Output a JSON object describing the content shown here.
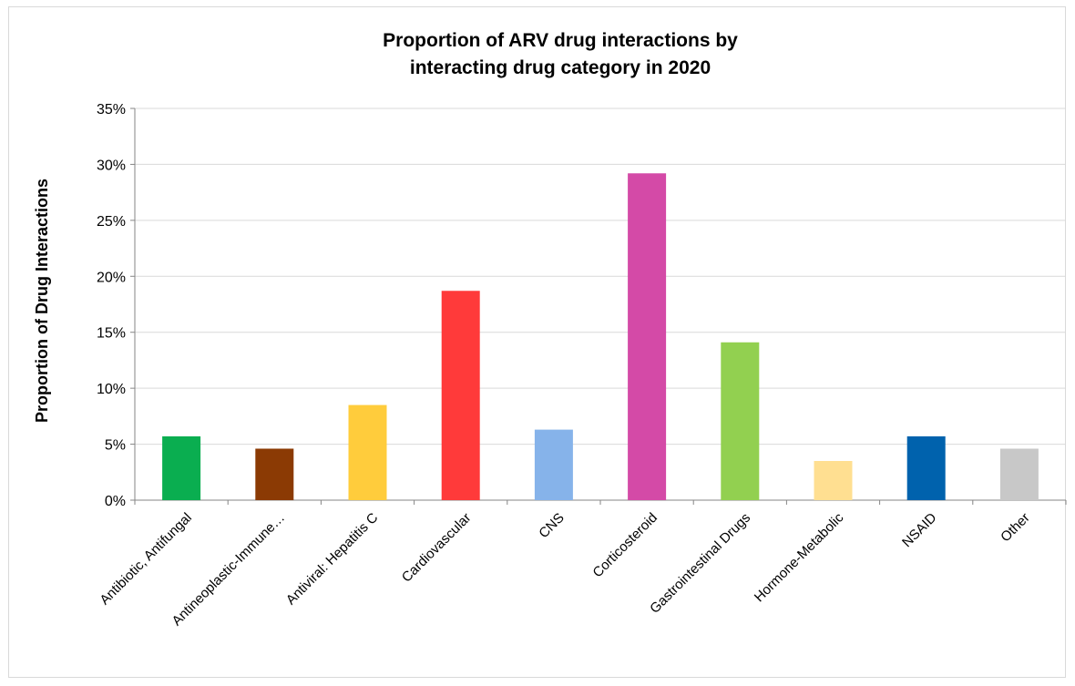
{
  "chart_data": {
    "type": "bar",
    "title_lines": [
      "Proportion of ARV drug interactions by",
      "interacting drug category in 2020"
    ],
    "xlabel": "",
    "ylabel": "Proportion of Drug Interactions",
    "ylim": [
      0,
      35
    ],
    "yticks": [
      0,
      5,
      10,
      15,
      20,
      25,
      30,
      35
    ],
    "ytick_labels": [
      "0%",
      "5%",
      "10%",
      "15%",
      "20%",
      "25%",
      "30%",
      "35%"
    ],
    "grid": true,
    "categories": [
      "Antibiotic, Antifungal",
      "Antineoplastic-Immune…",
      "Antiviral: Hepatitis C",
      "Cardiovascular",
      "CNS",
      "Corticosteroid",
      "Gastrointestinal Drugs",
      "Hormone-Metabolic",
      "NSAID",
      "Other"
    ],
    "values": [
      5.7,
      4.6,
      8.5,
      18.7,
      6.3,
      29.2,
      14.1,
      3.5,
      5.7,
      4.6
    ],
    "colors": [
      "#0aae50",
      "#8b3a04",
      "#ffcc3c",
      "#ff3a3a",
      "#86b3ea",
      "#d44aa7",
      "#92d050",
      "#ffdf91",
      "#0062ad",
      "#c8c8c8"
    ]
  }
}
